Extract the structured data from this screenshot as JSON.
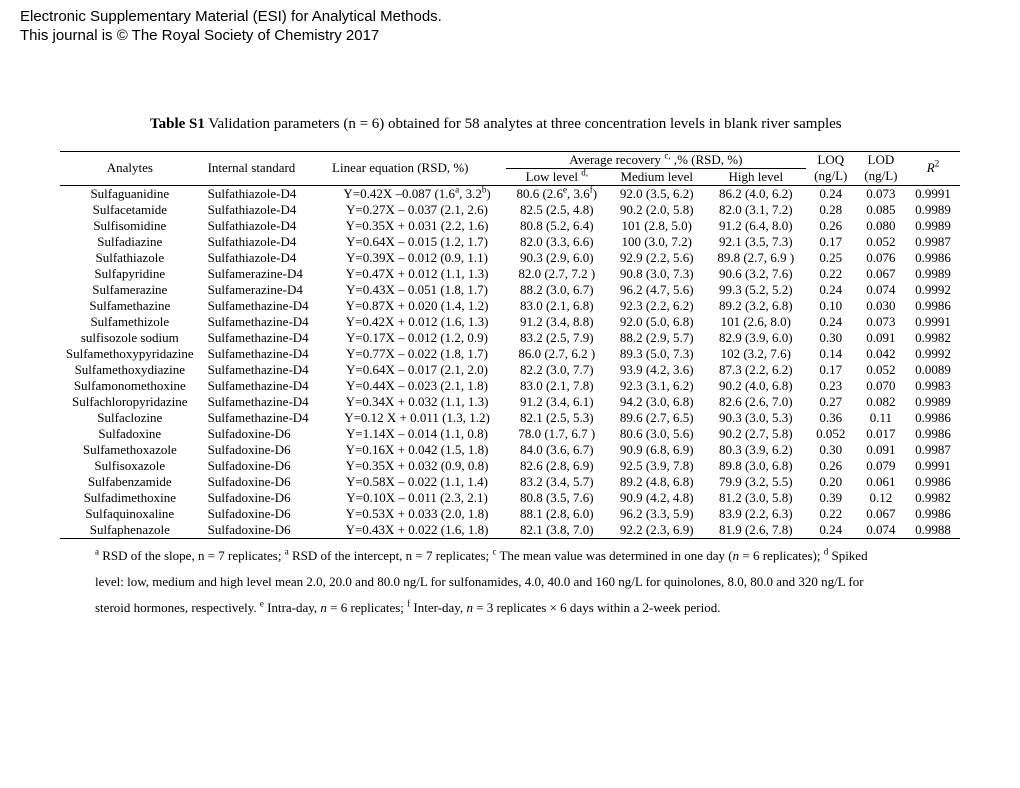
{
  "header": {
    "line1": "Electronic Supplementary Material (ESI) for Analytical Methods.",
    "line2": "This journal is © The Royal Society of Chemistry 2017"
  },
  "table_title_bold": "Table S1",
  "table_title_rest": " Validation parameters (n = 6) obtained for 58 analytes at three concentration levels in blank river samples",
  "columns": {
    "analytes": "Analytes",
    "istd": "Internal standard",
    "eq": "Linear equation (RSD, %)",
    "avg_rec": "Average recovery ",
    "avg_rec_sup": "c,",
    "avg_rec_tail": " ,% (RSD, %)",
    "low": "Low level ",
    "low_sup": "d,",
    "med": "Medium level",
    "high": "High level",
    "loq": "LOQ",
    "lod": "LOD",
    "unit": "(ng/L)",
    "r2": "R",
    "r2sup": "2"
  },
  "rows": [
    {
      "a": "Sulfaguanidine",
      "i": "Sulfathiazole-D4",
      "eq": "Y=0.42X –0.087 (1.6",
      "eqa": "a",
      "eqmid": ", 3.2",
      "eqb": "b",
      "eqend": ")",
      "lo": "80.6 (2.6",
      "losup1": "e",
      "lomid": ", 3.6",
      "losup2": "f",
      "loend": ")",
      "me": "92.0 (3.5, 6.2)",
      "hi": "86.2 (4.0, 6.2)",
      "loq": "0.24",
      "lod": "0.073",
      "r2": "0.9991"
    },
    {
      "a": "Sulfacetamide",
      "i": "Sulfathiazole-D4",
      "eq": "Y=0.27X – 0.037 (2.1, 2.6)",
      "lo": "82.5 (2.5, 4.8)",
      "me": "90.2 (2.0, 5.8)",
      "hi": "82.0 (3.1, 7.2)",
      "loq": "0.28",
      "lod": "0.085",
      "r2": "0.9989"
    },
    {
      "a": "Sulfisomidine",
      "i": "Sulfathiazole-D4",
      "eq": "Y=0.35X + 0.031 (2.2, 1.6)",
      "lo": "80.8 (5.2, 6.4)",
      "me": "101 (2.8, 5.0)",
      "hi": "91.2 (6.4, 8.0)",
      "loq": "0.26",
      "lod": "0.080",
      "r2": "0.9989"
    },
    {
      "a": "Sulfadiazine",
      "i": "Sulfathiazole-D4",
      "eq": "Y=0.64X – 0.015 (1.2, 1.7)",
      "lo": "82.0 (3.3, 6.6)",
      "me": "100 (3.0, 7.2)",
      "hi": "92.1 (3.5, 7.3)",
      "loq": "0.17",
      "lod": "0.052",
      "r2": "0.9987"
    },
    {
      "a": "Sulfathiazole",
      "i": "Sulfathiazole-D4",
      "eq": "Y=0.39X – 0.012 (0.9, 1.1)",
      "lo": "90.3 (2.9, 6.0)",
      "me": "92.9 (2.2, 5.6)",
      "hi": "89.8 (2.7, 6.9 )",
      "loq": "0.25",
      "lod": "0.076",
      "r2": "0.9986"
    },
    {
      "a": "Sulfapyridine",
      "i": "Sulfamerazine-D4",
      "eq": "Y=0.47X + 0.012 (1.1, 1.3)",
      "lo": "82.0 (2.7, 7.2 )",
      "me": "90.8 (3.0, 7.3)",
      "hi": "90.6 (3.2, 7.6)",
      "loq": "0.22",
      "lod": "0.067",
      "r2": "0.9989"
    },
    {
      "a": "Sulfamerazine",
      "i": "Sulfamerazine-D4",
      "eq": "Y=0.43X – 0.051 (1.8, 1.7)",
      "lo": "88.2 (3.0, 6.7)",
      "me": "96.2 (4.7, 5.6)",
      "hi": "99.3 (5.2, 5.2)",
      "loq": "0.24",
      "lod": "0.074",
      "r2": "0.9992"
    },
    {
      "a": "Sulfamethazine",
      "i": "Sulfamethazine-D4",
      "eq": "Y=0.87X + 0.020 (1.4, 1.2)",
      "lo": "83.0 (2.1, 6.8)",
      "me": "92.3 (2.2, 6.2)",
      "hi": "89.2 (3.2, 6.8)",
      "loq": "0.10",
      "lod": "0.030",
      "r2": "0.9986"
    },
    {
      "a": "Sulfamethizole",
      "i": "Sulfamethazine-D4",
      "eq": "Y=0.42X + 0.012 (1.6, 1.3)",
      "lo": "91.2 (3.4, 8.8)",
      "me": "92.0 (5.0, 6.8)",
      "hi": "101 (2.6, 8.0)",
      "loq": "0.24",
      "lod": "0.073",
      "r2": "0.9991"
    },
    {
      "a": "sulfisozole sodium",
      "i": "Sulfamethazine-D4",
      "eq": "Y=0.17X – 0.012 (1.2, 0.9)",
      "lo": "83.2 (2.5, 7.9)",
      "me": "88.2 (2.9, 5.7)",
      "hi": "82.9 (3.9, 6.0)",
      "loq": "0.30",
      "lod": "0.091",
      "r2": "0.9982"
    },
    {
      "a": "Sulfamethoxypyridazine",
      "i": "Sulfamethazine-D4",
      "eq": "Y=0.77X – 0.022 (1.8, 1.7)",
      "lo": "86.0 (2.7, 6.2 )",
      "me": "89.3 (5.0, 7.3)",
      "hi": "102 (3.2, 7.6)",
      "loq": "0.14",
      "lod": "0.042",
      "r2": "0.9992"
    },
    {
      "a": "Sulfamethoxydiazine",
      "i": "Sulfamethazine-D4",
      "eq": "Y=0.64X – 0.017 (2.1, 2.0)",
      "lo": "82.2 (3.0, 7.7)",
      "me": "93.9 (4.2, 3.6)",
      "hi": "87.3 (2.2, 6.2)",
      "loq": "0.17",
      "lod": "0.052",
      "r2": "0.0089"
    },
    {
      "a": "Sulfamonomethoxine",
      "i": "Sulfamethazine-D4",
      "eq": "Y=0.44X – 0.023 (2.1, 1.8)",
      "lo": "83.0 (2.1, 7.8)",
      "me": "92.3 (3.1, 6.2)",
      "hi": "90.2 (4.0, 6.8)",
      "loq": "0.23",
      "lod": "0.070",
      "r2": "0.9983"
    },
    {
      "a": "Sulfachloropyridazine",
      "i": "Sulfamethazine-D4",
      "eq": "Y=0.34X + 0.032 (1.1, 1.3)",
      "lo": "91.2 (3.4, 6.1)",
      "me": "94.2 (3.0, 6.8)",
      "hi": "82.6 (2.6, 7.0)",
      "loq": "0.27",
      "lod": "0.082",
      "r2": "0.9989"
    },
    {
      "a": "Sulfaclozine",
      "i": "Sulfamethazine-D4",
      "eq": "Y=0.12 X + 0.011 (1.3, 1.2)",
      "lo": "82.1 (2.5, 5.3)",
      "me": "89.6 (2.7, 6.5)",
      "hi": "90.3 (3.0, 5.3)",
      "loq": "0.36",
      "lod": "0.11",
      "r2": "0.9986"
    },
    {
      "a": "Sulfadoxine",
      "i": "Sulfadoxine-D6",
      "eq": "Y=1.14X – 0.014 (1.1, 0.8)",
      "lo": "78.0 (1.7, 6.7 )",
      "me": "80.6 (3.0, 5.6)",
      "hi": "90.2 (2.7, 5.8)",
      "loq": "0.052",
      "lod": "0.017",
      "r2": "0.9986"
    },
    {
      "a": "Sulfamethoxazole",
      "i": "Sulfadoxine-D6",
      "eq": "Y=0.16X + 0.042 (1.5, 1.8)",
      "lo": "84.0 (3.6, 6.7)",
      "me": "90.9 (6.8, 6.9)",
      "hi": "80.3 (3.9, 6.2)",
      "loq": "0.30",
      "lod": "0.091",
      "r2": "0.9987"
    },
    {
      "a": "Sulfisoxazole",
      "i": "Sulfadoxine-D6",
      "eq": "Y=0.35X + 0.032 (0.9, 0.8)",
      "lo": "82.6 (2.8, 6.9)",
      "me": "92.5 (3.9, 7.8)",
      "hi": "89.8 (3.0, 6.8)",
      "loq": "0.26",
      "lod": "0.079",
      "r2": "0.9991"
    },
    {
      "a": "Sulfabenzamide",
      "i": "Sulfadoxine-D6",
      "eq": "Y=0.58X – 0.022 (1.1, 1.4)",
      "lo": "83.2 (3.4, 5.7)",
      "me": "89.2 (4.8, 6.8)",
      "hi": "79.9 (3.2, 5.5)",
      "loq": "0.20",
      "lod": "0.061",
      "r2": "0.9986"
    },
    {
      "a": "Sulfadimethoxine",
      "i": "Sulfadoxine-D6",
      "eq": "Y=0.10X – 0.011 (2.3, 2.1)",
      "lo": "80.8 (3.5, 7.6)",
      "me": "90.9 (4.2, 4.8)",
      "hi": "81.2 (3.0, 5.8)",
      "loq": "0.39",
      "lod": "0.12",
      "r2": "0.9982"
    },
    {
      "a": "Sulfaquinoxaline",
      "i": "Sulfadoxine-D6",
      "eq": "Y=0.53X + 0.033 (2.0, 1.8)",
      "lo": "88.1 (2.8, 6.0)",
      "me": "96.2 (3.3, 5.9)",
      "hi": "83.9 (2.2, 6.3)",
      "loq": "0.22",
      "lod": "0.067",
      "r2": "0.9986"
    },
    {
      "a": "Sulfaphenazole",
      "i": "Sulfadoxine-D6",
      "eq": "Y=0.43X + 0.022 (1.6, 1.8)",
      "lo": "82.1 (3.8, 7.0)",
      "me": "92.2 (2.3, 6.9)",
      "hi": "81.9 (2.6, 7.8)",
      "loq": "0.24",
      "lod": "0.074",
      "r2": "0.9988"
    }
  ],
  "foot1a": "a",
  "foot1b": " RSD of the slope, n = 7 replicates; ",
  "foot2a": "a",
  "foot2b": " RSD of the intercept, n = 7 replicates; ",
  "foot3a": "c",
  "foot3b_pre": " The mean value was determined in one day (",
  "foot3b_it": "n",
  "foot3b_post": " = 6 replicates); ",
  "foot4a": "d",
  "foot4b": " Spiked",
  "footline2": "level: low, medium and high level mean 2.0, 20.0 and 80.0 ng/L for sulfonamides, 4.0, 40.0 and 160 ng/L for quinolones, 8.0, 80.0 and 320 ng/L for",
  "footline3_pre": "steroid hormones, respectively. ",
  "foot5a": "e",
  "foot5b_pre": " Intra-day, ",
  "foot5b_it": "n",
  "foot5b_post": " = 6 replicates; ",
  "foot6a": "f",
  "foot6b_pre": " Inter-day, ",
  "foot6b_it": "n",
  "foot6b_post": " = 3 replicates × 6 days within a 2-week period."
}
